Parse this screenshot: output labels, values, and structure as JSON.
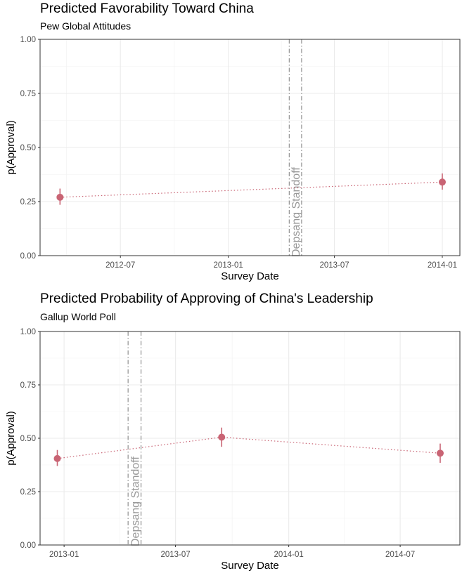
{
  "chart_data": [
    {
      "type": "scatter",
      "title": "Predicted Favorability Toward China",
      "subtitle": "Pew Global Attitudes",
      "xlabel": "Survey Date",
      "ylabel": "p(Approval)",
      "x_ticks": [
        "2012-07",
        "2013-01",
        "2013-07",
        "2014-01"
      ],
      "y_ticks": [
        "0.00",
        "0.25",
        "0.50",
        "0.75",
        "1.00"
      ],
      "ylim": [
        0,
        1
      ],
      "xlim": [
        "2012-02-15",
        "2014-01-31"
      ],
      "points": [
        {
          "x": "2012-03-20",
          "y": 0.27,
          "lower": 0.235,
          "upper": 0.31
        },
        {
          "x": "2014-01-01",
          "y": 0.34,
          "lower": 0.305,
          "upper": 0.38
        }
      ],
      "color": "#c96474",
      "annotation": {
        "label": "Depsang Standoff",
        "start": "2013-04-15",
        "end": "2013-05-06",
        "color": "#999999"
      },
      "grid": true,
      "legend": "none"
    },
    {
      "type": "scatter",
      "title": "Predicted Probability of Approving of China's Leadership",
      "subtitle": "Gallup World Poll",
      "xlabel": "Survey Date",
      "ylabel": "p(Approval)",
      "x_ticks": [
        "2013-01",
        "2013-07",
        "2014-01",
        "2014-07"
      ],
      "y_ticks": [
        "0.00",
        "0.25",
        "0.50",
        "0.75",
        "1.00"
      ],
      "ylim": [
        0,
        1
      ],
      "xlim": [
        "2012-11-23",
        "2014-10-06"
      ],
      "points": [
        {
          "x": "2012-12-21",
          "y": 0.405,
          "lower": 0.37,
          "upper": 0.445
        },
        {
          "x": "2013-09-14",
          "y": 0.505,
          "lower": 0.46,
          "upper": 0.55
        },
        {
          "x": "2014-09-04",
          "y": 0.43,
          "lower": 0.385,
          "upper": 0.475
        }
      ],
      "color": "#c96474",
      "annotation": {
        "label": "Depsang Standoff",
        "start": "2013-04-15",
        "end": "2013-05-06",
        "color": "#999999"
      },
      "grid": true,
      "legend": "none"
    }
  ]
}
